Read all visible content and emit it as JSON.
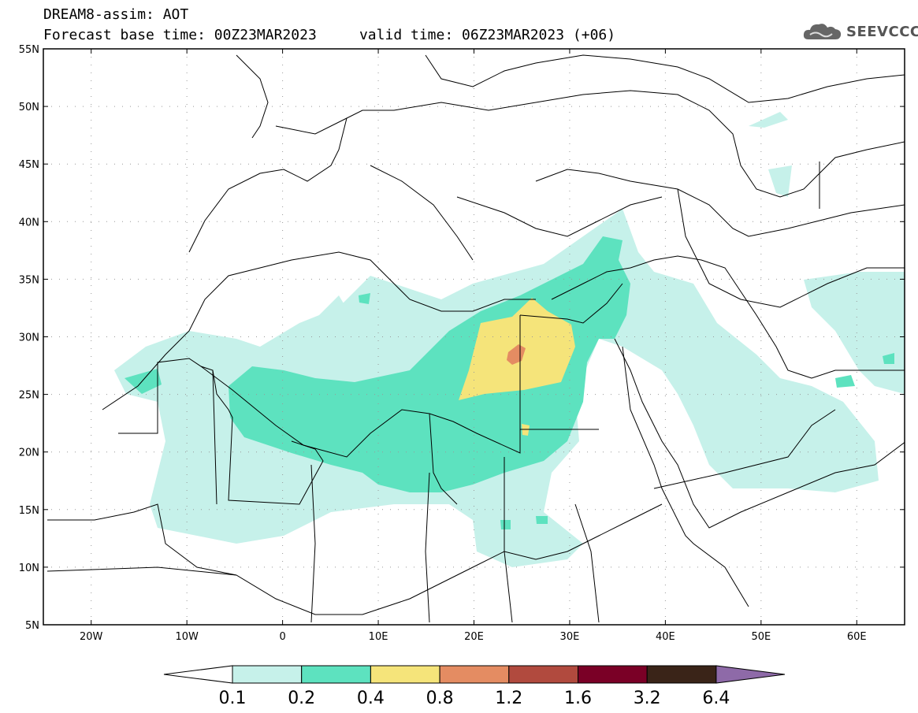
{
  "header": {
    "title": "DREAM8-assim: AOT",
    "base_time_label": "Forecast base time: 00Z23MAR2023",
    "valid_time_label": "valid time: 06Z23MAR2023 (+06)",
    "logo_text": "SEEVCCC"
  },
  "map": {
    "variable": "AOT",
    "lat_labels": [
      "55N",
      "50N",
      "45N",
      "40N",
      "35N",
      "30N",
      "25N",
      "20N",
      "15N",
      "10N",
      "5N"
    ],
    "lon_labels": [
      "20W",
      "10W",
      "0",
      "10E",
      "20E",
      "30E",
      "40E",
      "50E",
      "60E"
    ],
    "lat_range": [
      5,
      55
    ],
    "lon_range": [
      -25,
      65
    ],
    "grid": "dotted",
    "colors": {
      "c01": "#c6f1ea",
      "c02": "#5de2bf",
      "c04": "#f5e47a",
      "c08": "#e48c62",
      "c12": "#b14a3e",
      "c16": "#7a0026",
      "c32": "#3a2418",
      "c64": "#8e6aa8"
    }
  },
  "colorbar": {
    "labels": [
      "0.1",
      "0.2",
      "0.4",
      "0.8",
      "1.2",
      "1.6",
      "3.2",
      "6.4"
    ],
    "colors": [
      "#c6f1ea",
      "#5de2bf",
      "#f5e47a",
      "#e48c62",
      "#b14a3e",
      "#7a0026",
      "#3a2418"
    ],
    "over_color": "#8e6aa8",
    "under_color": "#ffffff"
  }
}
